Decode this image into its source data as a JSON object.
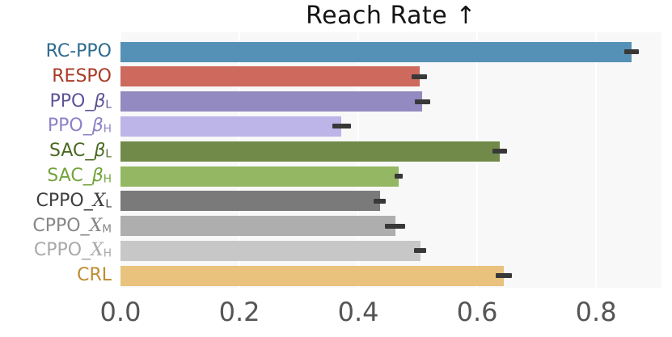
{
  "chart_data": {
    "type": "bar",
    "orientation": "horizontal",
    "title": "Reach Rate ↑",
    "xlabel": "",
    "ylabel": "",
    "xlim": [
      0,
      0.91
    ],
    "grid": "vertical white gridlines on light gray plot background",
    "legend": "none",
    "plot_bg_color": "#f8f8f9",
    "gridline_color": "#ffffff",
    "error_bar_color": "#383838",
    "tick_label_color": "#555555",
    "title_color": "#141414",
    "xticks": [
      {
        "value": 0.0,
        "label": "0.0"
      },
      {
        "value": 0.2,
        "label": "0.2"
      },
      {
        "value": 0.4,
        "label": "0.4"
      },
      {
        "value": 0.6,
        "label": "0.6"
      },
      {
        "value": 0.8,
        "label": "0.8"
      }
    ],
    "bars": [
      {
        "label": "RC-PPO",
        "label_parts": {
          "prefix": "RC-PPO",
          "symbol": "",
          "sub": ""
        },
        "value": 0.86,
        "error": 0.012,
        "bar_color": "#5591b6",
        "label_color": "#2e6b8f"
      },
      {
        "label": "RESPO",
        "label_parts": {
          "prefix": "RESPO",
          "symbol": "",
          "sub": ""
        },
        "value": 0.503,
        "error": 0.013,
        "bar_color": "#cd695d",
        "label_color": "#a93a26"
      },
      {
        "label": "PPO_β_L",
        "label_parts": {
          "prefix": "PPO_",
          "symbol": "β",
          "sub": "L"
        },
        "value": 0.508,
        "error": 0.013,
        "bar_color": "#928ac0",
        "label_color": "#5d5397"
      },
      {
        "label": "PPO_β_H",
        "label_parts": {
          "prefix": "PPO_",
          "symbol": "β",
          "sub": "H"
        },
        "value": 0.372,
        "error": 0.016,
        "bar_color": "#bdb4e7",
        "label_color": "#8e81c8"
      },
      {
        "label": "SAC_β_L",
        "label_parts": {
          "prefix": "SAC_",
          "symbol": "β",
          "sub": "L"
        },
        "value": 0.638,
        "error": 0.012,
        "bar_color": "#718a4a",
        "label_color": "#4a6a22"
      },
      {
        "label": "SAC_β_H",
        "label_parts": {
          "prefix": "SAC_",
          "symbol": "β",
          "sub": "H"
        },
        "value": 0.468,
        "error": 0.007,
        "bar_color": "#94b763",
        "label_color": "#73a43c"
      },
      {
        "label": "CPPO_𝒳_L",
        "label_parts": {
          "prefix": "CPPO_",
          "symbol": "𝒳",
          "sub": "L"
        },
        "value": 0.436,
        "error": 0.01,
        "bar_color": "#7a7a7a",
        "label_color": "#3f3f3f"
      },
      {
        "label": "CPPO_𝒳_M",
        "label_parts": {
          "prefix": "CPPO_",
          "symbol": "𝒳",
          "sub": "M"
        },
        "value": 0.462,
        "error": 0.017,
        "bar_color": "#aeaeae",
        "label_color": "#868686"
      },
      {
        "label": "CPPO_𝒳_H",
        "label_parts": {
          "prefix": "CPPO_",
          "symbol": "𝒳",
          "sub": "H"
        },
        "value": 0.504,
        "error": 0.01,
        "bar_color": "#c7c7c7",
        "label_color": "#a9a9a9"
      },
      {
        "label": "CRL",
        "label_parts": {
          "prefix": "CRL",
          "symbol": "",
          "sub": ""
        },
        "value": 0.645,
        "error": 0.014,
        "bar_color": "#e9c27e",
        "label_color": "#bf8b30"
      }
    ]
  }
}
